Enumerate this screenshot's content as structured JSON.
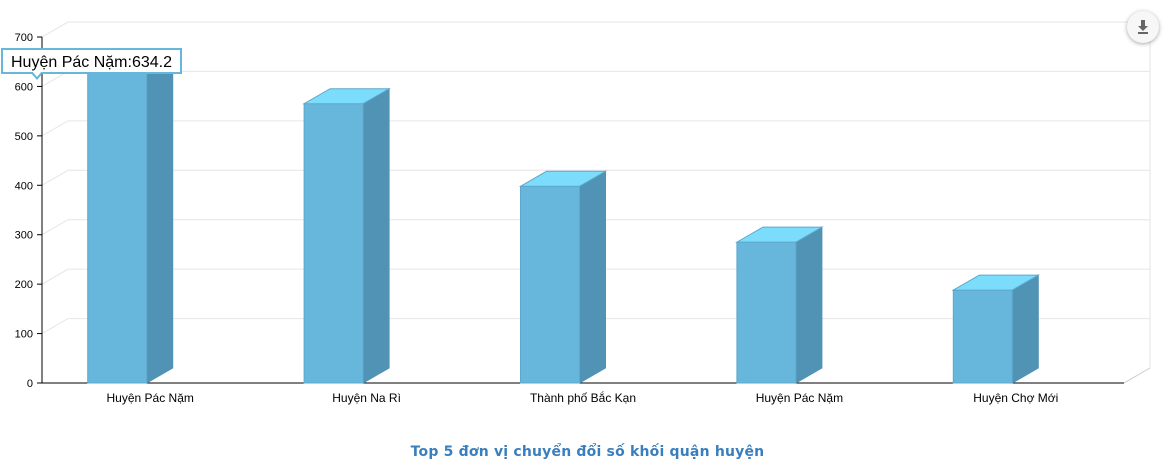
{
  "chart_data": {
    "type": "bar",
    "title": "Top 5 đơn vị chuyển đổi số khối quận huyện",
    "categories": [
      "Huyện Pác Nặm",
      "Huyện Na Rì",
      "Thành phố Bắc Kạn",
      "Huyện Pác Nặm",
      "Huyện Chợ Mới"
    ],
    "values": [
      634.2,
      565,
      398,
      285,
      188
    ],
    "ylim": [
      0,
      700
    ],
    "yticks": [
      0,
      100,
      200,
      300,
      400,
      500,
      600,
      700
    ],
    "grid": true,
    "style": "3d-column",
    "colors": {
      "front": "#67b7dc",
      "side": "#5193b4",
      "top": "#7cdcfc",
      "title": "#3a7fbd",
      "tooltip_border": "#67b7dc"
    }
  },
  "tooltip": {
    "text": "Huyện Pác Nặm:634.2"
  },
  "download_icon": "download-icon"
}
